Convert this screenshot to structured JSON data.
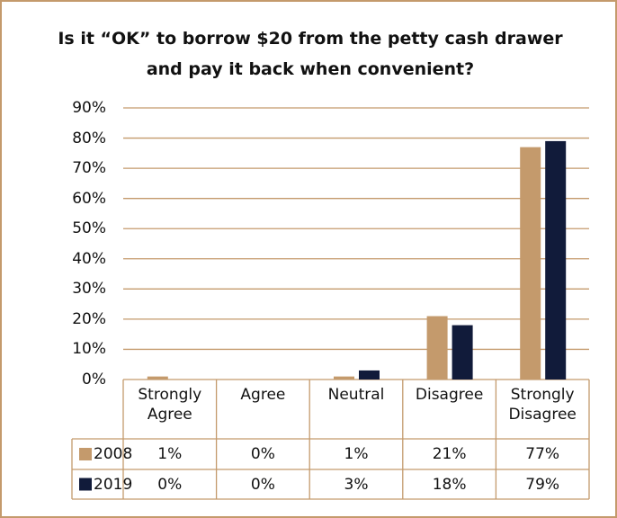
{
  "chart_data": {
    "type": "bar",
    "title": "Is it “OK” to borrow $20 from the petty cash drawer and pay it back when convenient?",
    "categories": [
      "Strongly Agree",
      "Agree",
      "Neutral",
      "Disagree",
      "Strongly Disagree"
    ],
    "series": [
      {
        "name": "2008",
        "color": "#c49a6c",
        "values": [
          1,
          0,
          1,
          21,
          77
        ],
        "value_labels": [
          "1%",
          "0%",
          "1%",
          "21%",
          "77%"
        ]
      },
      {
        "name": "2019",
        "color": "#111b3a",
        "values": [
          0,
          0,
          3,
          18,
          79
        ],
        "value_labels": [
          "0%",
          "0%",
          "3%",
          "18%",
          "79%"
        ]
      }
    ],
    "ylim": [
      0,
      90
    ],
    "yticks": [
      {
        "value": 0,
        "label": "0%"
      },
      {
        "value": 10,
        "label": "10%"
      },
      {
        "value": 20,
        "label": "20%"
      },
      {
        "value": 30,
        "label": "30%"
      },
      {
        "value": 40,
        "label": "40%"
      },
      {
        "value": 50,
        "label": "50%"
      },
      {
        "value": 60,
        "label": "60%"
      },
      {
        "value": 70,
        "label": "70%"
      },
      {
        "value": 80,
        "label": "80%"
      },
      {
        "value": 90,
        "label": "90%"
      }
    ],
    "grid": true
  }
}
